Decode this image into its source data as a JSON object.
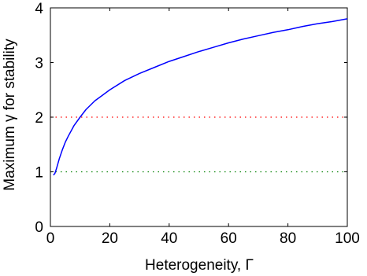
{
  "chart_data": {
    "type": "line",
    "title": "",
    "xlabel": "Heterogeneity, Γ",
    "ylabel": "Maximum γ for stability",
    "xlim": [
      0,
      100
    ],
    "ylim": [
      0,
      4
    ],
    "xticks": [
      0,
      20,
      40,
      60,
      80,
      100
    ],
    "yticks": [
      0,
      1,
      2,
      3,
      4
    ],
    "grid": false,
    "legend": "none",
    "series": [
      {
        "color": "#0000ff",
        "style": "solid",
        "x": [
          1,
          1.5,
          2,
          3,
          4,
          5,
          6,
          8,
          10,
          12,
          15,
          20,
          25,
          30,
          35,
          40,
          45,
          50,
          55,
          60,
          65,
          70,
          75,
          80,
          85,
          90,
          95,
          100
        ],
        "y": [
          0.94,
          0.97,
          1.05,
          1.24,
          1.4,
          1.54,
          1.65,
          1.85,
          2.0,
          2.14,
          2.3,
          2.5,
          2.67,
          2.8,
          2.91,
          3.02,
          3.11,
          3.2,
          3.28,
          3.36,
          3.43,
          3.49,
          3.55,
          3.6,
          3.66,
          3.71,
          3.75,
          3.8
        ]
      }
    ],
    "reference_lines": [
      {
        "y": 2,
        "color": "#ff0000",
        "style": "dotted"
      },
      {
        "y": 1,
        "color": "#008000",
        "style": "dotted"
      }
    ]
  }
}
